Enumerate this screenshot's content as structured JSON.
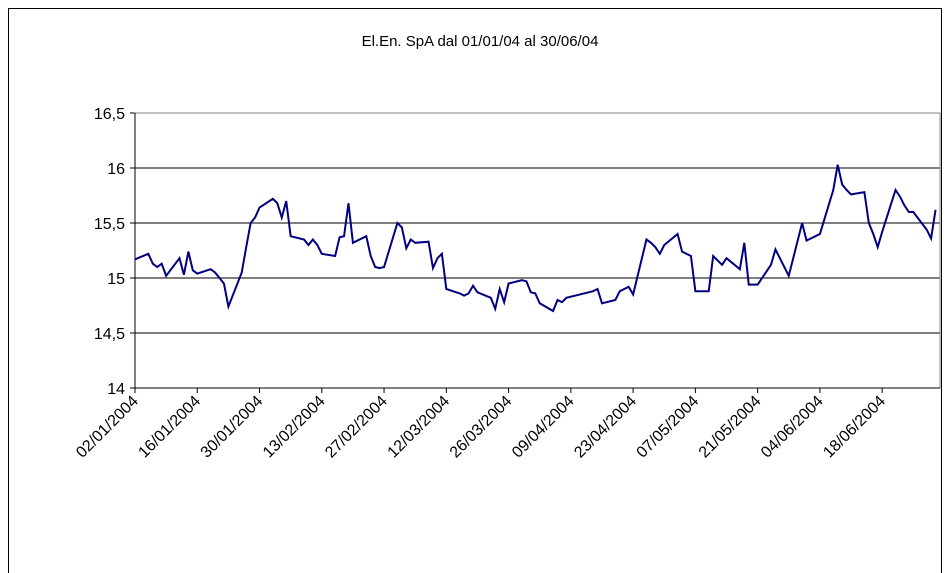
{
  "chart_data": {
    "type": "line",
    "title": "El.En. SpA dal 01/01/04 al 30/06/04",
    "x": [
      "02/01/2004",
      "05/01/2004",
      "06/01/2004",
      "07/01/2004",
      "08/01/2004",
      "09/01/2004",
      "12/01/2004",
      "13/01/2004",
      "14/01/2004",
      "15/01/2004",
      "16/01/2004",
      "19/01/2004",
      "20/01/2004",
      "21/01/2004",
      "22/01/2004",
      "23/01/2004",
      "26/01/2004",
      "27/01/2004",
      "28/01/2004",
      "29/01/2004",
      "30/01/2004",
      "02/02/2004",
      "03/02/2004",
      "04/02/2004",
      "05/02/2004",
      "06/02/2004",
      "09/02/2004",
      "10/02/2004",
      "11/02/2004",
      "12/02/2004",
      "13/02/2004",
      "16/02/2004",
      "17/02/2004",
      "18/02/2004",
      "19/02/2004",
      "20/02/2004",
      "23/02/2004",
      "24/02/2004",
      "25/02/2004",
      "26/02/2004",
      "27/02/2004",
      "01/03/2004",
      "02/03/2004",
      "03/03/2004",
      "04/03/2004",
      "05/03/2004",
      "08/03/2004",
      "09/03/2004",
      "10/03/2004",
      "11/03/2004",
      "12/03/2004",
      "15/03/2004",
      "16/03/2004",
      "17/03/2004",
      "18/03/2004",
      "19/03/2004",
      "22/03/2004",
      "23/03/2004",
      "24/03/2004",
      "25/03/2004",
      "26/03/2004",
      "29/03/2004",
      "30/03/2004",
      "31/03/2004",
      "01/04/2004",
      "02/04/2004",
      "05/04/2004",
      "06/04/2004",
      "07/04/2004",
      "08/04/2004",
      "13/04/2004",
      "14/04/2004",
      "15/04/2004",
      "16/04/2004",
      "19/04/2004",
      "20/04/2004",
      "21/04/2004",
      "22/04/2004",
      "23/04/2004",
      "26/04/2004",
      "27/04/2004",
      "28/04/2004",
      "29/04/2004",
      "30/04/2004",
      "03/05/2004",
      "04/05/2004",
      "05/05/2004",
      "06/05/2004",
      "07/05/2004",
      "10/05/2004",
      "11/05/2004",
      "12/05/2004",
      "13/05/2004",
      "14/05/2004",
      "17/05/2004",
      "18/05/2004",
      "19/05/2004",
      "20/05/2004",
      "21/05/2004",
      "24/05/2004",
      "25/05/2004",
      "26/05/2004",
      "27/05/2004",
      "28/05/2004",
      "31/05/2004",
      "01/06/2004",
      "03/06/2004",
      "04/06/2004",
      "07/06/2004",
      "08/06/2004",
      "09/06/2004",
      "10/06/2004",
      "11/06/2004",
      "14/06/2004",
      "15/06/2004",
      "16/06/2004",
      "17/06/2004",
      "18/06/2004",
      "21/06/2004",
      "22/06/2004",
      "23/06/2004",
      "24/06/2004",
      "25/06/2004",
      "28/06/2004",
      "29/06/2004",
      "30/06/2004"
    ],
    "series": [
      {
        "name": "El.En. SpA",
        "color": "#000080",
        "values": [
          15.17,
          15.22,
          15.13,
          15.1,
          15.13,
          15.02,
          15.18,
          15.03,
          15.24,
          15.07,
          15.04,
          15.08,
          15.05,
          15.0,
          14.95,
          14.74,
          15.05,
          15.28,
          15.5,
          15.55,
          15.64,
          15.72,
          15.68,
          15.55,
          15.7,
          15.38,
          15.35,
          15.3,
          15.35,
          15.3,
          15.22,
          15.2,
          15.37,
          15.38,
          15.68,
          15.32,
          15.38,
          15.2,
          15.1,
          15.09,
          15.1,
          15.5,
          15.46,
          15.27,
          15.35,
          15.32,
          15.33,
          15.09,
          15.18,
          15.22,
          14.9,
          14.86,
          14.84,
          14.86,
          14.93,
          14.87,
          14.82,
          14.72,
          14.9,
          14.78,
          14.95,
          14.98,
          14.97,
          14.87,
          14.86,
          14.77,
          14.7,
          14.8,
          14.78,
          14.82,
          14.87,
          14.88,
          14.9,
          14.77,
          14.8,
          14.88,
          14.9,
          14.92,
          14.85,
          15.35,
          15.32,
          15.28,
          15.22,
          15.3,
          15.4,
          15.24,
          15.22,
          15.2,
          14.88,
          14.88,
          15.2,
          15.16,
          15.12,
          15.18,
          15.08,
          15.32,
          14.94,
          14.94,
          14.94,
          15.12,
          15.26,
          15.18,
          15.1,
          15.02,
          15.5,
          15.34,
          15.38,
          15.4,
          15.8,
          16.03,
          15.85,
          15.8,
          15.76,
          15.78,
          15.5,
          15.4,
          15.28,
          15.42,
          15.8,
          15.74,
          15.66,
          15.6,
          15.6,
          15.44,
          15.36,
          15.62
        ]
      }
    ],
    "xlim": [
      "02/01/2004",
      "01/07/2004"
    ],
    "xticks": [
      "02/01/2004",
      "16/01/2004",
      "30/01/2004",
      "13/02/2004",
      "27/02/2004",
      "12/03/2004",
      "26/03/2004",
      "09/04/2004",
      "23/04/2004",
      "07/05/2004",
      "21/05/2004",
      "04/06/2004",
      "18/06/2004"
    ],
    "ylim": [
      14,
      16.5
    ],
    "yticks": [
      14,
      {
        "value": 14.5,
        "label": "14,5"
      },
      15,
      {
        "value": 15.5,
        "label": "15,5"
      },
      16,
      {
        "value": 16.5,
        "label": "16,5"
      }
    ],
    "grid": true
  }
}
